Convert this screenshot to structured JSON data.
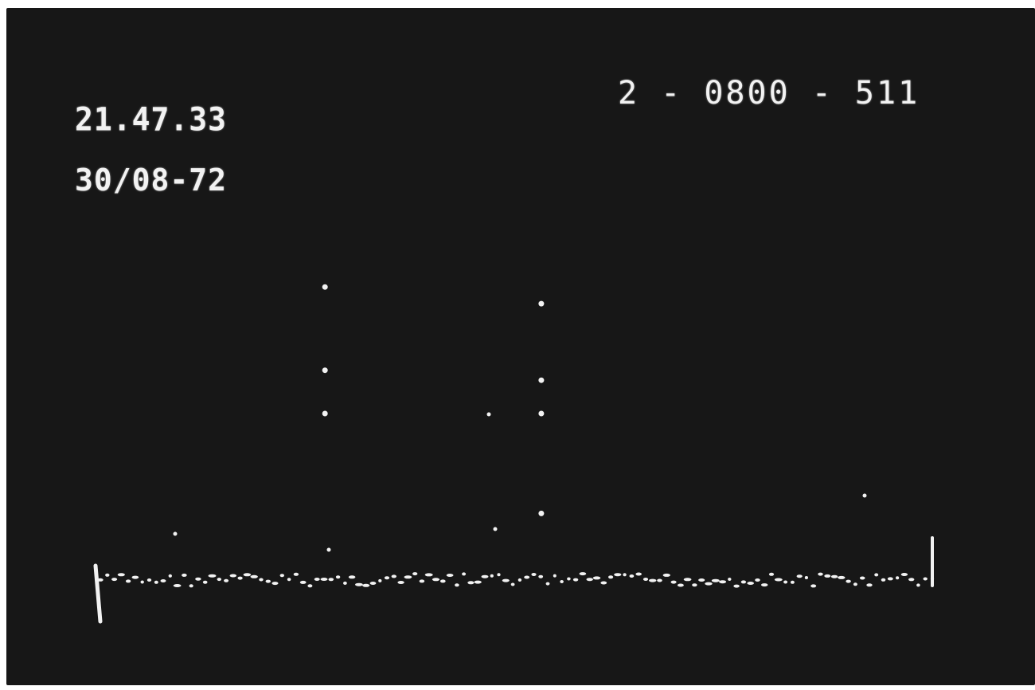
{
  "display": {
    "time": "21.47.33",
    "date": "30/08-72",
    "ident": "2 - 0800 - 511"
  },
  "colors": {
    "screen": "#171717",
    "phosphor": "#f2f2f2"
  },
  "trace": {
    "baseline_noise_dots": 120,
    "peaks": [
      {
        "channel_fraction": 0.27,
        "dots_level": [
          0.5,
          0.63,
          0.88
        ]
      },
      {
        "channel_fraction": 0.53,
        "dots_level": [
          0.2,
          0.5,
          0.6,
          0.83
        ]
      }
    ]
  }
}
